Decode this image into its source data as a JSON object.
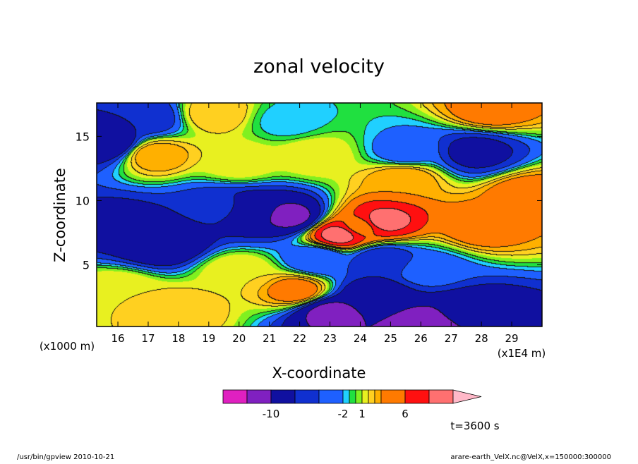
{
  "chart_data": {
    "type": "heatmap",
    "title": "zonal velocity",
    "xlabel": "X-coordinate",
    "ylabel": "Z-coordinate",
    "x_unit_label": "(x1E4 m)",
    "y_unit_label": "(x1000 m)",
    "xlim": [
      15.3,
      30.0
    ],
    "ylim": [
      0.2,
      17.6
    ],
    "x_ticks": [
      "16",
      "17",
      "18",
      "19",
      "20",
      "21",
      "22",
      "23",
      "24",
      "25",
      "26",
      "27",
      "28",
      "29"
    ],
    "x_tick_values": [
      16,
      17,
      18,
      19,
      20,
      21,
      22,
      23,
      24,
      25,
      26,
      27,
      28,
      29
    ],
    "y_ticks": [
      "5",
      "10",
      "15"
    ],
    "y_tick_values": [
      5,
      10,
      15
    ],
    "time_label": "t=3600 s",
    "colorbar": {
      "tick_labels": [
        "-10",
        "-2",
        "1",
        "6"
      ],
      "tick_values": [
        -10,
        -2,
        1,
        6
      ],
      "colors": [
        "#e020c0",
        "#8020c0",
        "#1010a0",
        "#1030d0",
        "#1e60ff",
        "#20d0ff",
        "#20e040",
        "#80f020",
        "#e8f020",
        "#ffd020",
        "#ffb000",
        "#ff7a00",
        "#ff1010",
        "#ff7070",
        "#ffb8c8"
      ],
      "boundaries": [
        -14,
        -12,
        -10,
        -6,
        -4,
        -2,
        -1,
        0,
        1,
        2,
        3,
        4,
        6,
        8,
        10,
        12
      ]
    },
    "features": [
      {
        "x": 15.7,
        "z": 14.5,
        "value": -9
      },
      {
        "x": 16.9,
        "z": 16.5,
        "value": -6
      },
      {
        "x": 17.2,
        "z": 13.6,
        "value": 4
      },
      {
        "x": 19.2,
        "z": 16.8,
        "value": 3
      },
      {
        "x": 20.0,
        "z": 13.0,
        "value": 2
      },
      {
        "x": 21.6,
        "z": 16.2,
        "value": -1.5
      },
      {
        "x": 16.0,
        "z": 8.2,
        "value": -7
      },
      {
        "x": 17.5,
        "z": 6.8,
        "value": -10
      },
      {
        "x": 20.4,
        "z": 9.2,
        "value": -9
      },
      {
        "x": 21.7,
        "z": 8.8,
        "value": -11
      },
      {
        "x": 19.3,
        "z": 9.5,
        "value": -5
      },
      {
        "x": 23.3,
        "z": 7.4,
        "value": 9
      },
      {
        "x": 24.7,
        "z": 8.4,
        "value": 9
      },
      {
        "x": 24.0,
        "z": 8.0,
        "value": 5
      },
      {
        "x": 22.5,
        "z": 13.5,
        "value": 2
      },
      {
        "x": 25.4,
        "z": 11.8,
        "value": 4
      },
      {
        "x": 25.5,
        "z": 13.8,
        "value": -3
      },
      {
        "x": 28.0,
        "z": 8.0,
        "value": 5
      },
      {
        "x": 29.5,
        "z": 10.5,
        "value": 5
      },
      {
        "x": 27.8,
        "z": 13.8,
        "value": -7
      },
      {
        "x": 28.3,
        "z": 17.1,
        "value": 5
      },
      {
        "x": 21.9,
        "z": 3.0,
        "value": 5
      },
      {
        "x": 20.0,
        "z": 4.5,
        "value": 2
      },
      {
        "x": 23.0,
        "z": 1.3,
        "value": -11
      },
      {
        "x": 24.5,
        "z": 2.5,
        "value": -9
      },
      {
        "x": 27.5,
        "z": 1.3,
        "value": -9
      },
      {
        "x": 26.2,
        "z": 0.3,
        "value": -12
      },
      {
        "x": 18.0,
        "z": 1.5,
        "value": 3
      },
      {
        "x": 16.0,
        "z": 3.0,
        "value": 2
      },
      {
        "x": 24.7,
        "z": 5.4,
        "value": -6
      },
      {
        "x": 26.2,
        "z": 4.6,
        "value": -3
      },
      {
        "x": 22.6,
        "z": 5.5,
        "value": -4
      }
    ]
  },
  "footer": {
    "left": "/usr/bin/gpview 2010-10-21",
    "right": "arare-earth_VelX.nc@VelX,x=150000:300000"
  }
}
